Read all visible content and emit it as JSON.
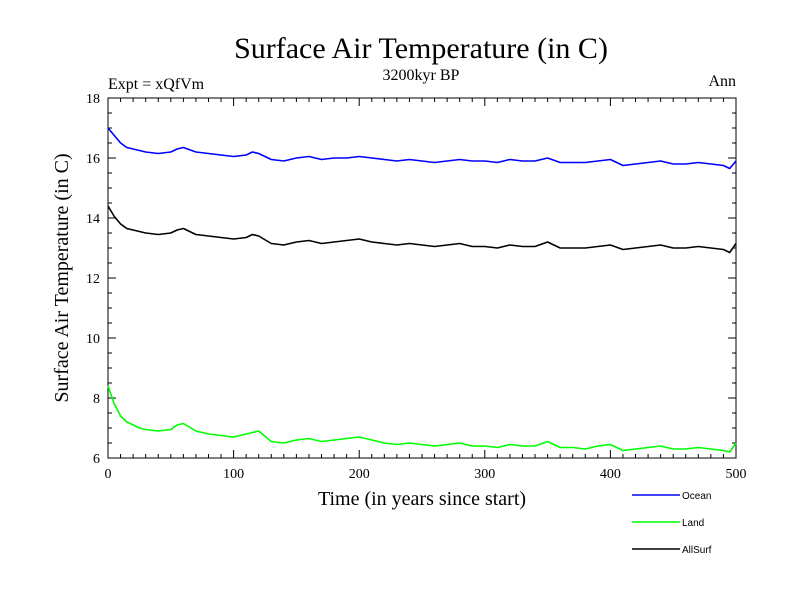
{
  "chart_data": {
    "type": "line",
    "title": "Surface Air Temperature (in C)",
    "subtitle": "3200kyr BP",
    "left_label": "Expt = xQfVm",
    "right_label": "Ann",
    "xlabel": "Time (in years since start)",
    "ylabel": "Surface Air Temperature (in C)",
    "xlim": [
      0,
      500
    ],
    "ylim": [
      6,
      18
    ],
    "xticks": [
      0,
      100,
      200,
      300,
      400,
      500
    ],
    "yticks": [
      6,
      8,
      10,
      12,
      14,
      16,
      18
    ],
    "x": [
      0,
      5,
      10,
      15,
      20,
      25,
      30,
      40,
      50,
      55,
      60,
      70,
      80,
      90,
      100,
      110,
      115,
      120,
      130,
      140,
      150,
      160,
      170,
      180,
      190,
      200,
      210,
      220,
      230,
      240,
      250,
      260,
      270,
      280,
      290,
      300,
      310,
      320,
      330,
      340,
      350,
      360,
      370,
      380,
      390,
      400,
      410,
      420,
      430,
      440,
      450,
      460,
      470,
      480,
      490,
      495,
      500
    ],
    "series": [
      {
        "name": "Ocean",
        "color": "#0000ff",
        "values": [
          17.0,
          16.75,
          16.5,
          16.35,
          16.3,
          16.25,
          16.2,
          16.15,
          16.2,
          16.3,
          16.35,
          16.2,
          16.15,
          16.1,
          16.05,
          16.1,
          16.2,
          16.15,
          15.95,
          15.9,
          16.0,
          16.05,
          15.95,
          16.0,
          16.0,
          16.05,
          16.0,
          15.95,
          15.9,
          15.95,
          15.9,
          15.85,
          15.9,
          15.95,
          15.9,
          15.9,
          15.85,
          15.95,
          15.9,
          15.9,
          16.0,
          15.85,
          15.85,
          15.85,
          15.9,
          15.95,
          15.75,
          15.8,
          15.85,
          15.9,
          15.8,
          15.8,
          15.85,
          15.8,
          15.75,
          15.65,
          15.9
        ]
      },
      {
        "name": "Land",
        "color": "#00ff00",
        "values": [
          8.4,
          7.8,
          7.4,
          7.2,
          7.1,
          7.0,
          6.95,
          6.9,
          6.95,
          7.1,
          7.15,
          6.9,
          6.8,
          6.75,
          6.7,
          6.8,
          6.85,
          6.9,
          6.55,
          6.5,
          6.6,
          6.65,
          6.55,
          6.6,
          6.65,
          6.7,
          6.6,
          6.5,
          6.45,
          6.5,
          6.45,
          6.4,
          6.45,
          6.5,
          6.4,
          6.4,
          6.35,
          6.45,
          6.4,
          6.4,
          6.55,
          6.35,
          6.35,
          6.3,
          6.4,
          6.45,
          6.25,
          6.3,
          6.35,
          6.4,
          6.3,
          6.3,
          6.35,
          6.3,
          6.25,
          6.2,
          6.5
        ]
      },
      {
        "name": "AllSurf",
        "color": "#000000",
        "values": [
          14.4,
          14.05,
          13.8,
          13.65,
          13.6,
          13.55,
          13.5,
          13.45,
          13.5,
          13.6,
          13.65,
          13.45,
          13.4,
          13.35,
          13.3,
          13.35,
          13.45,
          13.4,
          13.15,
          13.1,
          13.2,
          13.25,
          13.15,
          13.2,
          13.25,
          13.3,
          13.2,
          13.15,
          13.1,
          13.15,
          13.1,
          13.05,
          13.1,
          13.15,
          13.05,
          13.05,
          13.0,
          13.1,
          13.05,
          13.05,
          13.2,
          13.0,
          13.0,
          13.0,
          13.05,
          13.1,
          12.95,
          13.0,
          13.05,
          13.1,
          13.0,
          13.0,
          13.05,
          13.0,
          12.95,
          12.85,
          13.15
        ]
      }
    ],
    "legend": {
      "placement": "below-right",
      "entries": [
        "Ocean",
        "Land",
        "AllSurf"
      ]
    }
  }
}
